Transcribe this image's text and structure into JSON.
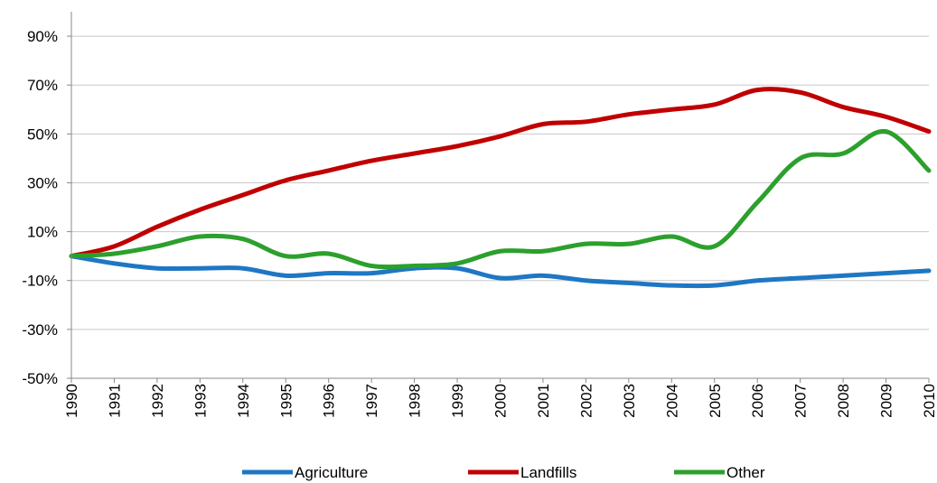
{
  "chart_data": {
    "type": "line",
    "title": "",
    "xlabel": "",
    "ylabel": "",
    "x": [
      "1990",
      "1991",
      "1992",
      "1993",
      "1994",
      "1995",
      "1996",
      "1997",
      "1998",
      "1999",
      "2000",
      "2001",
      "2002",
      "2003",
      "2004",
      "2005",
      "2006",
      "2007",
      "2008",
      "2009",
      "2010"
    ],
    "ylim": [
      -50,
      100
    ],
    "yticks": [
      -50,
      -30,
      -10,
      10,
      30,
      50,
      70,
      90
    ],
    "ytick_labels": [
      "-50%",
      "-30%",
      "-10%",
      "10%",
      "30%",
      "50%",
      "70%",
      "90%"
    ],
    "grid": "horizontal",
    "legend_position": "bottom",
    "series": [
      {
        "name": "Agriculture",
        "color": "#1f77c4",
        "values": [
          0,
          -3,
          -5,
          -5,
          -5,
          -8,
          -7,
          -7,
          -5,
          -5,
          -9,
          -8,
          -10,
          -11,
          -12,
          -12,
          -10,
          -9,
          -8,
          -7,
          -6
        ]
      },
      {
        "name": "Landfills",
        "color": "#c00000",
        "values": [
          0,
          4,
          12,
          19,
          25,
          31,
          35,
          39,
          42,
          45,
          49,
          54,
          55,
          58,
          60,
          62,
          68,
          67,
          61,
          57,
          51
        ]
      },
      {
        "name": "Other",
        "color": "#2ca02c",
        "values": [
          0,
          1,
          4,
          8,
          7,
          0,
          1,
          -4,
          -4,
          -3,
          2,
          2,
          5,
          5,
          8,
          4,
          22,
          40,
          42,
          51,
          35
        ]
      }
    ]
  }
}
